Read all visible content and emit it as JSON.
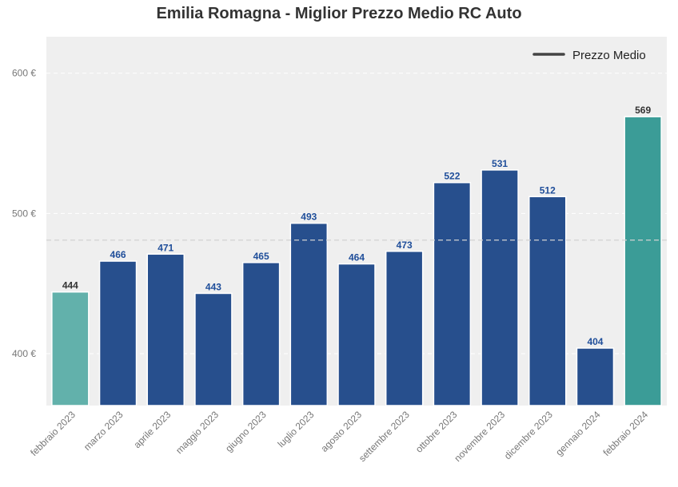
{
  "chart_data": {
    "type": "bar",
    "title": "Emilia Romagna - Miglior Prezzo Medio RC Auto",
    "categories": [
      "febbraio 2023",
      "marzo 2023",
      "aprile 2023",
      "maggio 2023",
      "giugno 2023",
      "luglio 2023",
      "agosto 2023",
      "settembre 2023",
      "ottobre 2023",
      "novembre 2023",
      "dicembre 2023",
      "gennaio 2024",
      "febbraio 2024"
    ],
    "values": [
      444,
      466,
      471,
      443,
      465,
      493,
      464,
      473,
      522,
      531,
      512,
      404,
      569
    ],
    "value_labels": [
      "444",
      "466",
      "471",
      "443",
      "465",
      "493",
      "464",
      "473",
      "522",
      "531",
      "512",
      "404",
      "569"
    ],
    "bar_colors": [
      "#62b1ab",
      "#274f8d",
      "#274f8d",
      "#274f8d",
      "#274f8d",
      "#274f8d",
      "#274f8d",
      "#274f8d",
      "#274f8d",
      "#274f8d",
      "#274f8d",
      "#274f8d",
      "#3b9c97"
    ],
    "label_colors": [
      "#333333",
      "#1f4e9a",
      "#1f4e9a",
      "#1f4e9a",
      "#1f4e9a",
      "#1f4e9a",
      "#1f4e9a",
      "#1f4e9a",
      "#1f4e9a",
      "#1f4e9a",
      "#1f4e9a",
      "#1f4e9a",
      "#333333"
    ],
    "yticks": [
      400,
      500,
      600
    ],
    "ytick_labels": [
      "400 €",
      "500 €",
      "600 €"
    ],
    "ylim": [
      363,
      626
    ],
    "reference_line": {
      "name": "Prezzo Medio",
      "value": 481
    },
    "legend": {
      "label": "Prezzo Medio",
      "position": "top-right"
    },
    "grid": true,
    "xlabel": "",
    "ylabel": ""
  }
}
